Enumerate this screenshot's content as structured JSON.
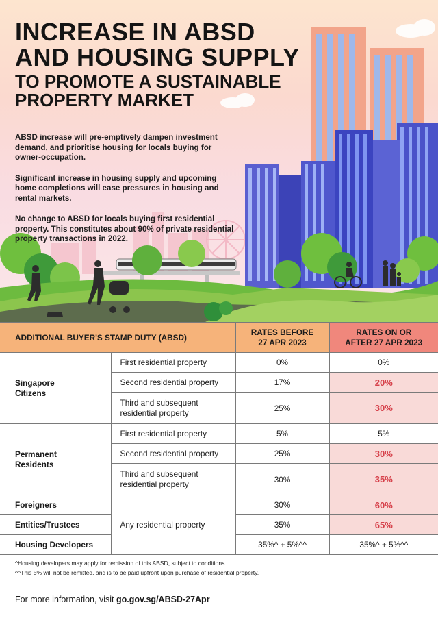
{
  "title": {
    "line1": "INCREASE IN ABSD",
    "line2": "AND HOUSING SUPPLY",
    "line3": "TO PROMOTE A SUSTAINABLE",
    "line4": "PROPERTY MARKET"
  },
  "intro": [
    "ABSD increase will pre-emptively dampen investment demand, and prioritise housing for locals buying for owner-occupation.",
    "Significant increase in housing supply and upcoming home completions will ease pressures in housing and rental markets.",
    "No change to ABSD for locals buying first residential property. This constitutes about 90% of private residential property transactions in 2022."
  ],
  "table": {
    "header": {
      "label": "ADDITIONAL BUYER'S STAMP DUTY (ABSD)",
      "before_l1": "RATES BEFORE",
      "before_l2": "27 APR 2023",
      "after_l1": "RATES ON OR",
      "after_l2": "AFTER 27 APR 2023"
    },
    "sc": {
      "cat_l1": "Singapore",
      "cat_l2": "Citizens",
      "rows": [
        {
          "type": "First residential property",
          "before": "0%",
          "after": "0%"
        },
        {
          "type": "Second residential property",
          "before": "17%",
          "after": "20%"
        },
        {
          "type_l1": "Third and subsequent",
          "type_l2": "residential property",
          "before": "25%",
          "after": "30%"
        }
      ]
    },
    "pr": {
      "cat_l1": "Permanent",
      "cat_l2": "Residents",
      "rows": [
        {
          "type": "First residential property",
          "before": "5%",
          "after": "5%"
        },
        {
          "type": "Second residential property",
          "before": "25%",
          "after": "30%"
        },
        {
          "type_l1": "Third and subsequent",
          "type_l2": "residential property",
          "before": "30%",
          "after": "35%"
        }
      ]
    },
    "other_type": "Any residential property",
    "foreigners": {
      "label": "Foreigners",
      "before": "30%",
      "after": "60%"
    },
    "entities": {
      "label": "Entities/Trustees",
      "before": "35%",
      "after": "65%"
    },
    "developers": {
      "label": "Housing Developers",
      "before": "35%^ + 5%^^",
      "after": "35%^ + 5%^^"
    }
  },
  "footnotes": [
    "^Housing developers may apply for remission of this ABSD, subject to conditions",
    "^^This 5% will not be remitted, and is to be paid upfront upon purchase of residential property."
  ],
  "footer": {
    "prefix": "For more information, visit ",
    "link": "go.gov.sg/ABSD-27Apr"
  },
  "colors": {
    "header_orange": "#f6b37a",
    "header_red": "#f0877c",
    "highlight_bg": "#f9dad8",
    "highlight_text": "#d6404a"
  }
}
